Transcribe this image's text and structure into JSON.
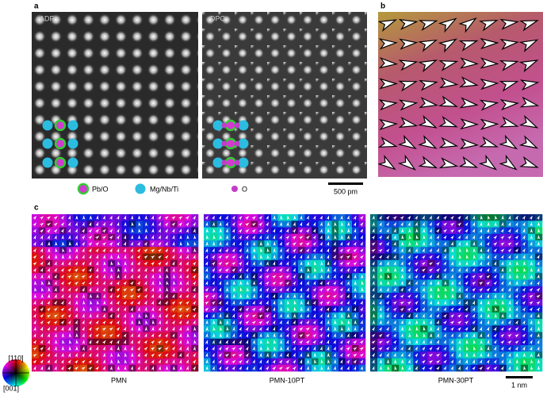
{
  "panel_a": {
    "label": "a",
    "adf_label": "ADF",
    "dpc_label": "DPC",
    "legend": [
      "Pb/O",
      "Mg/Nb/Ti",
      "O"
    ],
    "scale_bar": "500 pm"
  },
  "panel_b": {
    "label": "b"
  },
  "panel_c": {
    "label": "c",
    "maps": [
      "PMN",
      "PMN-10PT",
      "PMN-30PT"
    ],
    "wheel_top": "[110]",
    "wheel_left": "[001]",
    "scale_bar": "1 nm"
  }
}
